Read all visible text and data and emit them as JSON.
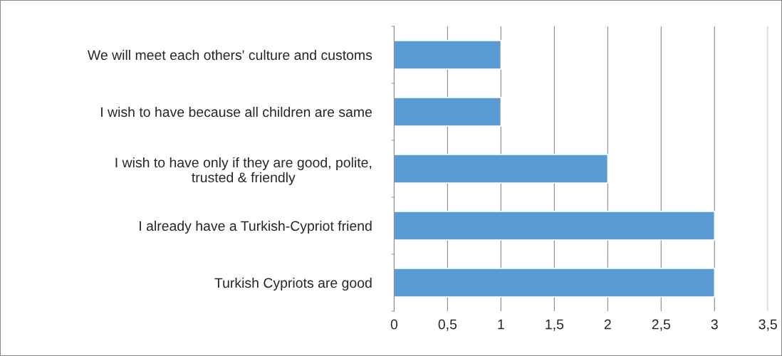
{
  "chart_data": {
    "type": "bar",
    "orientation": "horizontal",
    "categories": [
      "We will meet each others' culture and customs",
      "I wish to have because all children are same",
      "I wish to have only if they are good, polite,\ntrusted & friendly",
      "I already have a Turkish-Cypriot friend",
      "Turkish Cypriots are good"
    ],
    "values": [
      1,
      1,
      2,
      3,
      3
    ],
    "color": "#5b9bd5",
    "xlim": [
      0,
      3.5
    ],
    "xticks": [
      0,
      {
        "value": 0.5,
        "label": "0,5"
      },
      1,
      {
        "value": 1.5,
        "label": "1,5"
      },
      2,
      {
        "value": 2.5,
        "label": "2,5"
      },
      3,
      {
        "value": 3.5,
        "label": "3,5"
      }
    ],
    "grid": "x"
  }
}
